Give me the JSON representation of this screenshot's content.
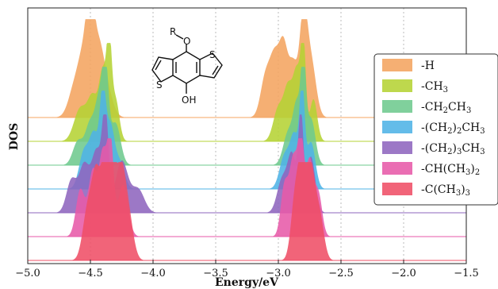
{
  "chart_data": {
    "type": "area",
    "xlabel": "Energy/eV",
    "ylabel": "DOS",
    "xlim": [
      -5.0,
      -1.5
    ],
    "x_ticks": [
      "−5.0",
      "−4.5",
      "−4.0",
      "−3.5",
      "−3.0",
      "−2.5",
      "−2.0",
      "−1.5"
    ],
    "x_tick_values": [
      -5.0,
      -4.5,
      -4.0,
      -3.5,
      -3.0,
      -2.5,
      -2.0,
      -1.5
    ],
    "grid": "vertical dotted",
    "legend_position": "right",
    "series": [
      {
        "name": "-H",
        "label_parts": [
          [
            "-H",
            ""
          ]
        ],
        "color": "#f4a460",
        "baseline": 6,
        "peaks": [
          [
            -4.62,
            0.35,
            0.05
          ],
          [
            -4.55,
            0.55,
            0.04
          ],
          [
            -4.5,
            1.0,
            0.03
          ],
          [
            -4.44,
            0.6,
            0.04
          ],
          [
            -4.38,
            0.35,
            0.05
          ],
          [
            -3.1,
            0.45,
            0.04
          ],
          [
            -3.03,
            0.55,
            0.035
          ],
          [
            -2.96,
            0.75,
            0.035
          ],
          [
            -2.88,
            0.55,
            0.035
          ],
          [
            -2.8,
            1.0,
            0.03
          ],
          [
            -2.74,
            0.6,
            0.04
          ]
        ]
      },
      {
        "name": "-CH3",
        "label_parts": [
          [
            "-CH",
            ""
          ],
          [
            "3",
            "sub"
          ]
        ],
        "color": "#b5d334",
        "baseline": 5,
        "peaks": [
          [
            -4.58,
            0.35,
            0.05
          ],
          [
            -4.48,
            0.45,
            0.04
          ],
          [
            -4.4,
            0.7,
            0.03
          ],
          [
            -4.35,
            0.95,
            0.02
          ],
          [
            -4.3,
            0.45,
            0.03
          ],
          [
            -3.0,
            0.35,
            0.04
          ],
          [
            -2.92,
            0.55,
            0.035
          ],
          [
            -2.85,
            0.7,
            0.03
          ],
          [
            -2.8,
            1.0,
            0.02
          ],
          [
            -2.72,
            0.45,
            0.03
          ]
        ]
      },
      {
        "name": "-CH2CH3",
        "label_parts": [
          [
            "-CH",
            ""
          ],
          [
            "2",
            "sub"
          ],
          [
            "CH",
            ""
          ],
          [
            "3",
            "sub"
          ]
        ],
        "color": "#6ec98e",
        "baseline": 4,
        "peaks": [
          [
            -4.6,
            0.25,
            0.04
          ],
          [
            -4.5,
            0.45,
            0.04
          ],
          [
            -4.43,
            0.6,
            0.03
          ],
          [
            -4.38,
            1.0,
            0.025
          ],
          [
            -4.3,
            0.45,
            0.04
          ],
          [
            -2.92,
            0.35,
            0.04
          ],
          [
            -2.85,
            0.6,
            0.03
          ],
          [
            -2.8,
            1.0,
            0.02
          ],
          [
            -2.74,
            0.5,
            0.035
          ]
        ]
      },
      {
        "name": "-(CH2)2CH3",
        "label_parts": [
          [
            "-(CH",
            ""
          ],
          [
            "2",
            "sub"
          ],
          [
            ")",
            ""
          ],
          [
            "2",
            "sub"
          ],
          [
            "CH",
            ""
          ],
          [
            "3",
            "sub"
          ]
        ],
        "color": "#4fb3e6",
        "baseline": 3,
        "peaks": [
          [
            -4.55,
            0.4,
            0.04
          ],
          [
            -4.47,
            0.55,
            0.035
          ],
          [
            -4.4,
            1.0,
            0.025
          ],
          [
            -4.34,
            0.6,
            0.03
          ],
          [
            -4.27,
            0.3,
            0.04
          ],
          [
            -2.95,
            0.35,
            0.04
          ],
          [
            -2.87,
            0.55,
            0.035
          ],
          [
            -2.81,
            1.0,
            0.02
          ],
          [
            -2.74,
            0.5,
            0.035
          ]
        ]
      },
      {
        "name": "-(CH2)3CH3",
        "label_parts": [
          [
            "-(CH",
            ""
          ],
          [
            "2",
            "sub"
          ],
          [
            ")",
            ""
          ],
          [
            "3",
            "sub"
          ],
          [
            "CH",
            ""
          ],
          [
            "3",
            "sub"
          ]
        ],
        "color": "#8e65be",
        "baseline": 2,
        "peaks": [
          [
            -4.65,
            0.35,
            0.04
          ],
          [
            -4.55,
            0.5,
            0.04
          ],
          [
            -4.45,
            0.65,
            0.04
          ],
          [
            -4.38,
            1.0,
            0.025
          ],
          [
            -4.25,
            0.55,
            0.05
          ],
          [
            -4.12,
            0.25,
            0.05
          ],
          [
            -2.97,
            0.35,
            0.04
          ],
          [
            -2.89,
            0.6,
            0.035
          ],
          [
            -2.82,
            1.0,
            0.02
          ],
          [
            -2.74,
            0.6,
            0.035
          ]
        ]
      },
      {
        "name": "-CH(CH3)2",
        "label_parts": [
          [
            "-CH(CH",
            ""
          ],
          [
            "3",
            "sub"
          ],
          [
            ")",
            ""
          ],
          [
            "2",
            "sub"
          ]
        ],
        "color": "#e75aa8",
        "baseline": 1,
        "peaks": [
          [
            -4.58,
            0.5,
            0.035
          ],
          [
            -4.48,
            0.7,
            0.035
          ],
          [
            -4.4,
            0.85,
            0.03
          ],
          [
            -4.34,
            1.0,
            0.025
          ],
          [
            -4.24,
            0.55,
            0.04
          ],
          [
            -2.95,
            0.55,
            0.03
          ],
          [
            -2.88,
            0.8,
            0.03
          ],
          [
            -2.82,
            1.0,
            0.025
          ],
          [
            -2.75,
            0.8,
            0.03
          ],
          [
            -2.68,
            0.45,
            0.03
          ]
        ]
      },
      {
        "name": "-C(CH3)3",
        "label_parts": [
          [
            "-C(CH",
            ""
          ],
          [
            "3",
            "sub"
          ],
          [
            ")",
            ""
          ],
          [
            "3",
            "sub"
          ]
        ],
        "color": "#ef4f66",
        "baseline": 0,
        "peaks": [
          [
            -4.52,
            0.55,
            0.04
          ],
          [
            -4.45,
            0.85,
            0.035
          ],
          [
            -4.38,
            0.95,
            0.03
          ],
          [
            -4.33,
            1.0,
            0.03
          ],
          [
            -4.26,
            0.85,
            0.035
          ],
          [
            -4.2,
            0.5,
            0.04
          ],
          [
            -2.86,
            0.75,
            0.035
          ],
          [
            -2.8,
            1.0,
            0.03
          ],
          [
            -2.74,
            0.9,
            0.035
          ],
          [
            -2.67,
            0.45,
            0.035
          ]
        ]
      }
    ]
  },
  "molecule": {
    "substituent_label": "R",
    "oxygen_label": "O",
    "hydroxyl_label": "OH",
    "sulfur_label": "S"
  }
}
